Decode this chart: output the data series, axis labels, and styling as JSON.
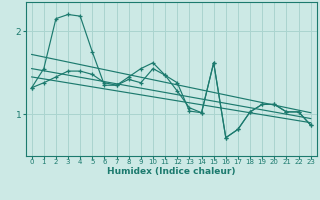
{
  "xlabel": "Humidex (Indice chaleur)",
  "bg_color": "#cce9e5",
  "grid_color": "#aad4cf",
  "line_color": "#1c7a6e",
  "xlim": [
    -0.5,
    23.5
  ],
  "ylim": [
    0.5,
    2.35
  ],
  "yticks": [
    1,
    2
  ],
  "xticks": [
    0,
    1,
    2,
    3,
    4,
    5,
    6,
    7,
    8,
    9,
    10,
    11,
    12,
    13,
    14,
    15,
    16,
    17,
    18,
    19,
    20,
    21,
    22,
    23
  ],
  "s1_x": [
    0,
    1,
    2,
    3,
    4,
    5,
    6,
    7,
    8,
    9,
    10,
    11,
    12,
    13,
    14,
    15,
    16,
    17,
    18,
    19,
    20,
    21,
    22,
    23
  ],
  "s1_y": [
    1.32,
    1.55,
    2.15,
    2.2,
    2.18,
    1.75,
    1.35,
    1.35,
    1.45,
    1.55,
    1.62,
    1.47,
    1.38,
    1.04,
    1.02,
    1.62,
    0.72,
    0.82,
    1.03,
    1.12,
    1.12,
    1.03,
    1.03,
    0.87
  ],
  "s2_x": [
    0,
    1,
    2,
    3,
    4,
    5,
    6,
    7,
    8,
    9,
    10,
    11,
    12,
    13,
    14,
    15,
    16,
    17,
    18,
    19,
    20,
    21,
    22,
    23
  ],
  "s2_y": [
    1.32,
    1.38,
    1.45,
    1.52,
    1.52,
    1.48,
    1.38,
    1.35,
    1.42,
    1.38,
    1.55,
    1.47,
    1.28,
    1.08,
    1.02,
    1.62,
    0.72,
    0.82,
    1.03,
    1.12,
    1.12,
    1.03,
    1.03,
    0.87
  ],
  "trend1_x": [
    0,
    23
  ],
  "trend1_y": [
    1.72,
    1.02
  ],
  "trend2_x": [
    0,
    23
  ],
  "trend2_y": [
    1.55,
    0.95
  ],
  "trend3_x": [
    0,
    23
  ],
  "trend3_y": [
    1.45,
    0.9
  ]
}
